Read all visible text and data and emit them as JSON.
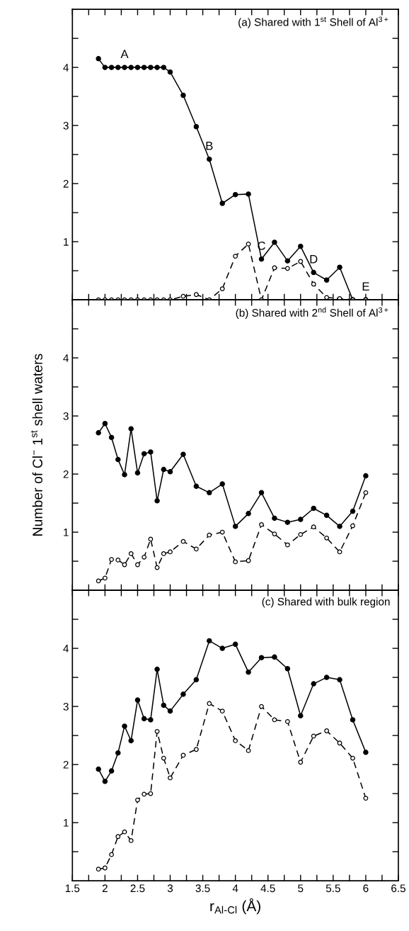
{
  "chart_data": [
    {
      "type": "line",
      "title": "(a) Shared with 1$^{st}$ Shell of Al$^{3+}$",
      "x": [
        1.9,
        2.0,
        2.1,
        2.2,
        2.3,
        2.4,
        2.5,
        2.6,
        2.7,
        2.8,
        2.9,
        3.0,
        3.2,
        3.4,
        3.6,
        3.8,
        4.0,
        4.2,
        4.4,
        4.6,
        4.8,
        5.0,
        5.2,
        5.4,
        5.6,
        5.8,
        6.0
      ],
      "series": [
        {
          "color": "#000000",
          "line_style": "solid",
          "marker": "circle",
          "values": [
            4.15,
            4.0,
            4.0,
            4.0,
            4.0,
            4.0,
            4.0,
            4.0,
            4.0,
            4.0,
            4.0,
            3.92,
            3.52,
            2.98,
            2.42,
            1.66,
            1.81,
            1.82,
            0.7,
            0.99,
            0.67,
            0.92,
            0.47,
            0.34,
            0.56,
            0.0,
            0.0
          ]
        },
        {
          "color": "#000000",
          "line_style": "dashed",
          "marker": "circle",
          "values": [
            0.0,
            0.0,
            0.0,
            0.0,
            0.0,
            0.0,
            0.0,
            0.0,
            0.0,
            0.0,
            0.0,
            0.0,
            0.06,
            0.09,
            0.0,
            0.19,
            0.75,
            0.96,
            0.0,
            0.55,
            0.54,
            0.66,
            0.27,
            0.04,
            0.02,
            0.0,
            0.0
          ]
        }
      ],
      "annotations": [
        {
          "text": "A",
          "x": 2.3,
          "y": 4.0
        },
        {
          "text": "B",
          "x": 3.6,
          "y": 2.42
        },
        {
          "text": "C",
          "x": 4.4,
          "y": 0.7
        },
        {
          "text": "D",
          "x": 5.2,
          "y": 0.47
        },
        {
          "text": "E",
          "x": 6.0,
          "y": 0.0
        }
      ],
      "xlim": [
        1.5,
        6.5
      ],
      "ylim": [
        0,
        5
      ],
      "xticks": [
        1.5,
        {
          "value": 1.75,
          "label": null
        },
        2,
        {
          "value": 2.25,
          "label": null
        },
        2.5,
        {
          "value": 2.75,
          "label": null
        },
        3,
        {
          "value": 3.25,
          "label": null
        },
        3.5,
        {
          "value": 3.75,
          "label": null
        },
        4,
        {
          "value": 4.25,
          "label": null
        },
        4.5,
        {
          "value": 4.75,
          "label": null
        },
        5,
        {
          "value": 5.25,
          "label": null
        },
        5.5,
        {
          "value": 5.75,
          "label": null
        },
        6,
        {
          "value": 6.25,
          "label": null
        },
        6.5
      ],
      "yticks": [
        {
          "value": 0.5,
          "label": null
        },
        1,
        {
          "value": 1.5,
          "label": null
        },
        2,
        {
          "value": 2.5,
          "label": null
        },
        3,
        {
          "value": 3.5,
          "label": null
        },
        4,
        {
          "value": 4.5,
          "label": null
        }
      ],
      "tick_labels": "y",
      "grid": false,
      "legend": false
    },
    {
      "type": "line",
      "title": "(b) Shared with 2$^{nd}$ Shell of Al$^{3+}$",
      "ylabel": "Number of Cl$^{−}$ 1$^{st}$ shell waters",
      "x": [
        1.9,
        2.0,
        2.1,
        2.2,
        2.3,
        2.4,
        2.5,
        2.6,
        2.7,
        2.8,
        2.9,
        3.0,
        3.2,
        3.4,
        3.6,
        3.8,
        4.0,
        4.2,
        4.4,
        4.6,
        4.8,
        5.0,
        5.2,
        5.4,
        5.6,
        5.8,
        6.0
      ],
      "series": [
        {
          "color": "#000000",
          "line_style": "solid",
          "marker": "circle",
          "values": [
            2.71,
            2.87,
            2.63,
            2.25,
            1.99,
            2.78,
            2.02,
            2.35,
            2.38,
            1.54,
            2.08,
            2.04,
            2.34,
            1.79,
            1.68,
            1.83,
            1.1,
            1.32,
            1.68,
            1.24,
            1.17,
            1.22,
            1.41,
            1.29,
            1.1,
            1.36,
            1.97
          ]
        },
        {
          "color": "#000000",
          "line_style": "dashed",
          "marker": "circle",
          "values": [
            0.16,
            0.21,
            0.53,
            0.52,
            0.44,
            0.63,
            0.44,
            0.57,
            0.88,
            0.39,
            0.63,
            0.66,
            0.84,
            0.71,
            0.95,
            1.0,
            0.49,
            0.51,
            1.13,
            0.97,
            0.78,
            0.96,
            1.09,
            0.9,
            0.66,
            1.11,
            1.68
          ]
        }
      ],
      "xlim": [
        1.5,
        6.5
      ],
      "ylim": [
        0,
        5
      ],
      "xticks": [
        1.5,
        {
          "value": 1.75,
          "label": null
        },
        2,
        {
          "value": 2.25,
          "label": null
        },
        2.5,
        {
          "value": 2.75,
          "label": null
        },
        3,
        {
          "value": 3.25,
          "label": null
        },
        3.5,
        {
          "value": 3.75,
          "label": null
        },
        4,
        {
          "value": 4.25,
          "label": null
        },
        4.5,
        {
          "value": 4.75,
          "label": null
        },
        5,
        {
          "value": 5.25,
          "label": null
        },
        5.5,
        {
          "value": 5.75,
          "label": null
        },
        6,
        {
          "value": 6.25,
          "label": null
        },
        6.5
      ],
      "yticks": [
        {
          "value": 0.5,
          "label": null
        },
        1,
        {
          "value": 1.5,
          "label": null
        },
        2,
        {
          "value": 2.5,
          "label": null
        },
        3,
        {
          "value": 3.5,
          "label": null
        },
        4,
        {
          "value": 4.5,
          "label": null
        }
      ],
      "tick_labels": "y",
      "grid": false,
      "legend": false
    },
    {
      "type": "line",
      "title": "(c) Shared with bulk region",
      "xlabel": "r$_{Al-Cl}$ (Å)",
      "x": [
        1.9,
        2.0,
        2.1,
        2.2,
        2.3,
        2.4,
        2.5,
        2.6,
        2.7,
        2.8,
        2.9,
        3.0,
        3.2,
        3.4,
        3.6,
        3.8,
        4.0,
        4.2,
        4.4,
        4.6,
        4.8,
        5.0,
        5.2,
        5.4,
        5.6,
        5.8,
        6.0
      ],
      "series": [
        {
          "color": "#000000",
          "line_style": "solid",
          "marker": "circle",
          "values": [
            1.92,
            1.71,
            1.89,
            2.2,
            2.66,
            2.41,
            3.11,
            2.79,
            2.77,
            3.64,
            3.02,
            2.92,
            3.21,
            3.46,
            4.13,
            4.0,
            4.07,
            3.59,
            3.84,
            3.85,
            3.65,
            2.84,
            3.39,
            3.5,
            3.46,
            2.77,
            2.21
          ]
        },
        {
          "color": "#000000",
          "line_style": "dashed",
          "marker": "circle",
          "values": [
            0.2,
            0.22,
            0.45,
            0.76,
            0.84,
            0.69,
            1.39,
            1.49,
            1.5,
            2.57,
            2.11,
            1.77,
            2.16,
            2.26,
            3.05,
            2.92,
            2.41,
            2.24,
            3.0,
            2.77,
            2.74,
            2.04,
            2.49,
            2.58,
            2.37,
            2.11,
            1.42
          ]
        }
      ],
      "xlim": [
        1.5,
        6.5
      ],
      "ylim": [
        0,
        5
      ],
      "xticks": [
        1.5,
        {
          "value": 1.75,
          "label": null
        },
        2,
        {
          "value": 2.25,
          "label": null
        },
        2.5,
        {
          "value": 2.75,
          "label": null
        },
        3,
        {
          "value": 3.25,
          "label": null
        },
        3.5,
        {
          "value": 3.75,
          "label": null
        },
        4,
        {
          "value": 4.25,
          "label": null
        },
        4.5,
        {
          "value": 4.75,
          "label": null
        },
        5,
        {
          "value": 5.25,
          "label": null
        },
        5.5,
        {
          "value": 5.75,
          "label": null
        },
        6,
        {
          "value": 6.25,
          "label": null
        },
        6.5
      ],
      "yticks": [
        {
          "value": 0.5,
          "label": null
        },
        1,
        {
          "value": 1.5,
          "label": null
        },
        2,
        {
          "value": 2.5,
          "label": null
        },
        3,
        {
          "value": 3.5,
          "label": null
        },
        4,
        {
          "value": 4.5,
          "label": null
        }
      ],
      "grid": false,
      "legend": false
    }
  ]
}
